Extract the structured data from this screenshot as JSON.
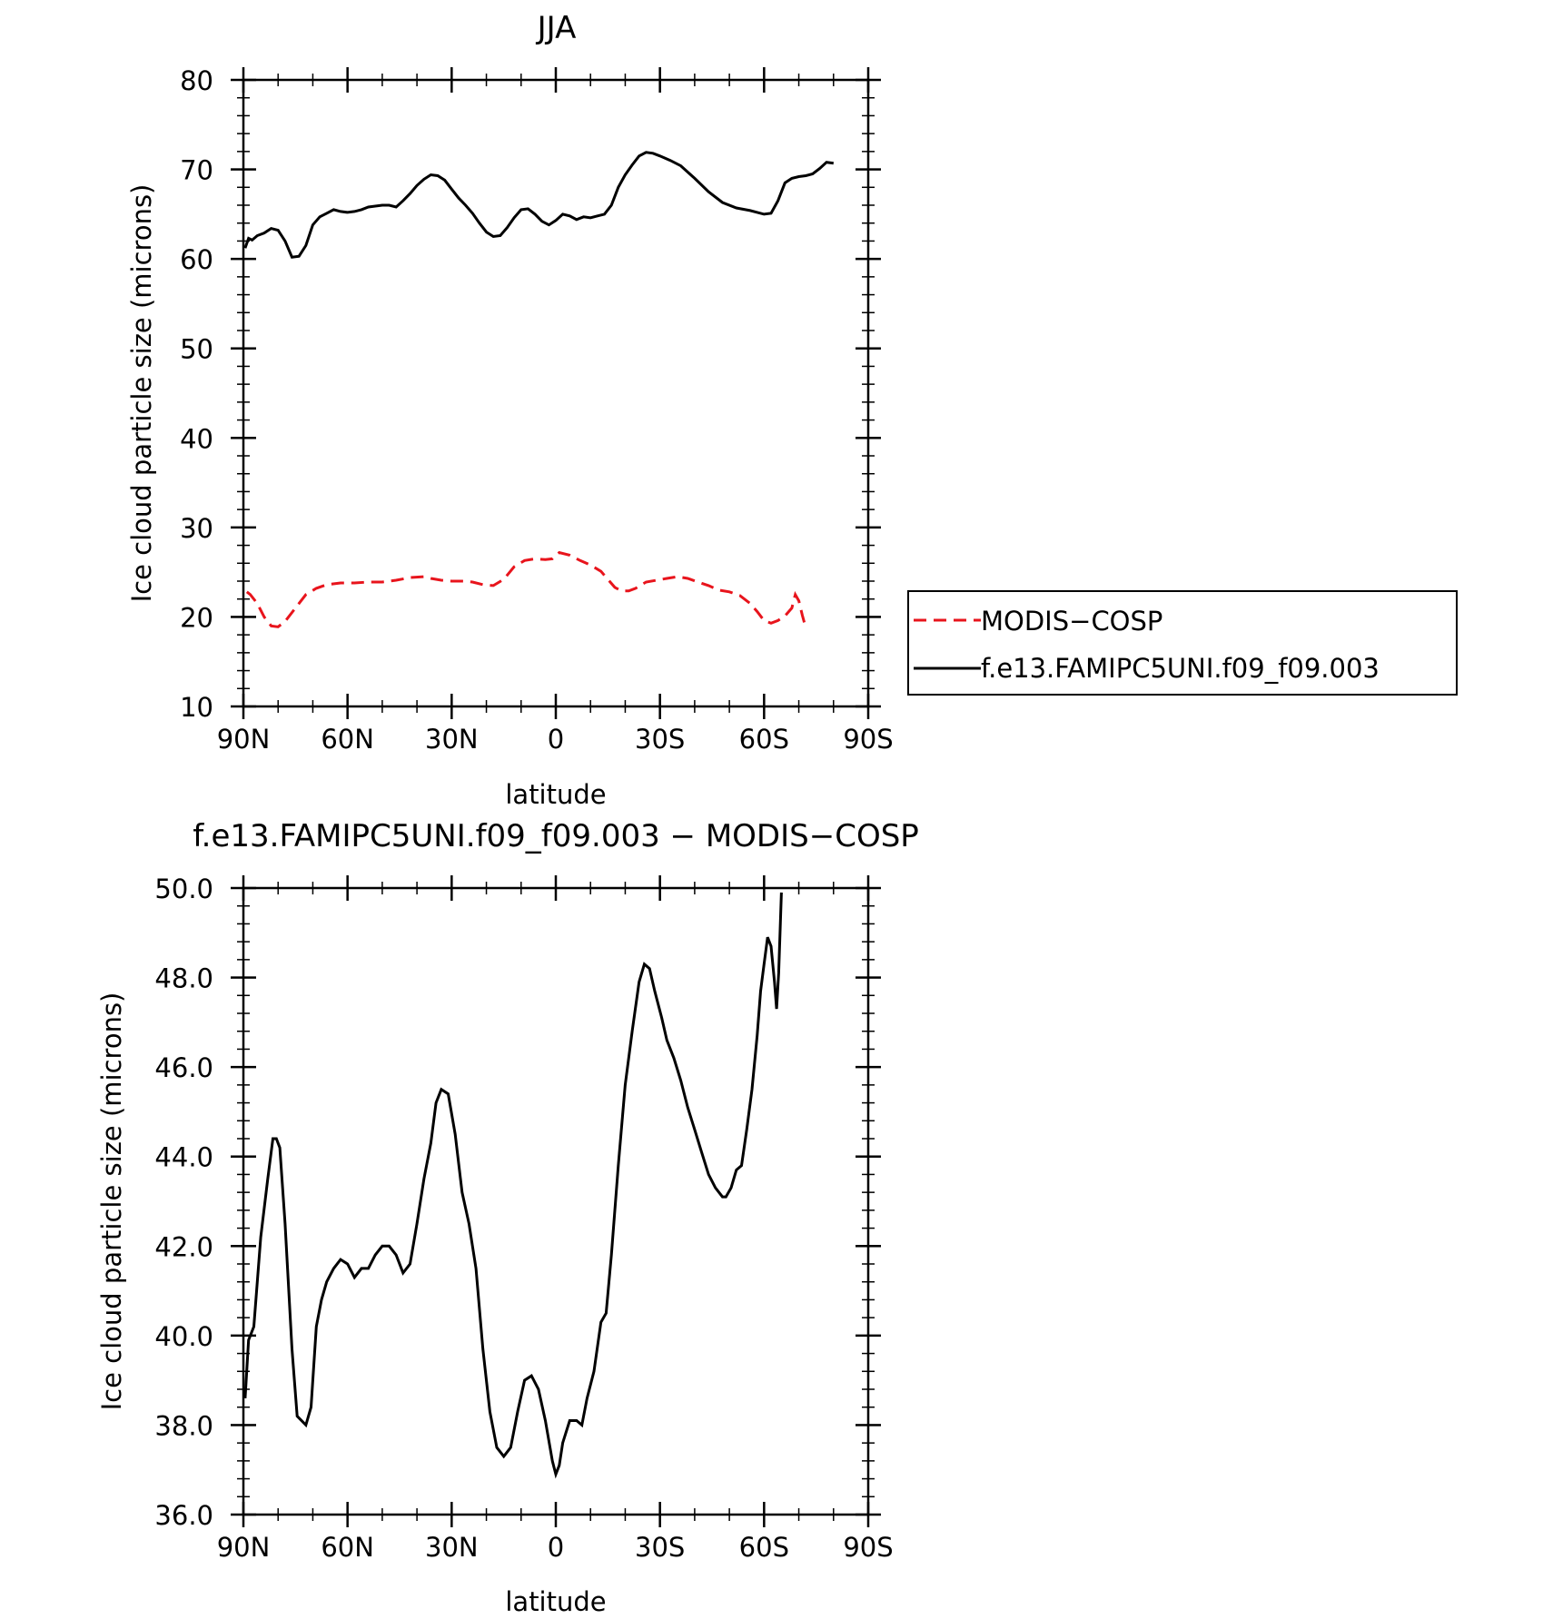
{
  "chart_data": [
    {
      "type": "line",
      "title": "JJA",
      "xlabel": "latitude",
      "ylabel": "Ice cloud particle size (microns)",
      "xlim": [
        -90,
        90
      ],
      "ylim": [
        10,
        80
      ],
      "x_ticks": [
        -90,
        -60,
        -30,
        0,
        30,
        60,
        90
      ],
      "x_tick_labels": [
        "90N",
        "60N",
        "30N",
        "0",
        "30S",
        "60S",
        "90S"
      ],
      "y_ticks": [
        10,
        20,
        30,
        40,
        50,
        60,
        70,
        80
      ],
      "y_tick_labels": [
        "10",
        "20",
        "30",
        "40",
        "50",
        "60",
        "70",
        "80"
      ],
      "grid": false,
      "legend": {
        "placement": "outside-right",
        "entries": [
          "MODIS−COSP",
          "f.e13.FAMIPC5UNI.f09_f09.003"
        ]
      },
      "series": [
        {
          "name": "MODIS−COSP",
          "color": "#e8141c",
          "style": "dashed",
          "points": [
            [
              -89,
              22.8
            ],
            [
              -88,
              22.5
            ],
            [
              -86,
              21.5
            ],
            [
              -84,
              20
            ],
            [
              -82,
              19
            ],
            [
              -80,
              18.9
            ],
            [
              -78,
              19.5
            ],
            [
              -75,
              21
            ],
            [
              -72,
              22.5
            ],
            [
              -69,
              23.2
            ],
            [
              -66,
              23.6
            ],
            [
              -62,
              23.8
            ],
            [
              -58,
              23.8
            ],
            [
              -54,
              23.9
            ],
            [
              -50,
              23.9
            ],
            [
              -46,
              24.1
            ],
            [
              -42,
              24.4
            ],
            [
              -38,
              24.5
            ],
            [
              -36,
              24.3
            ],
            [
              -33,
              24.1
            ],
            [
              -30,
              24
            ],
            [
              -27,
              24
            ],
            [
              -24,
              23.9
            ],
            [
              -21,
              23.6
            ],
            [
              -18,
              23.5
            ],
            [
              -15,
              24.2
            ],
            [
              -12,
              25.6
            ],
            [
              -9,
              26.3
            ],
            [
              -6,
              26.5
            ],
            [
              -3,
              26.4
            ],
            [
              -1,
              26.5
            ],
            [
              1,
              27.2
            ],
            [
              4,
              26.9
            ],
            [
              7,
              26.3
            ],
            [
              10,
              25.8
            ],
            [
              13,
              25.1
            ],
            [
              15,
              24.2
            ],
            [
              17,
              23.3
            ],
            [
              19,
              22.9
            ],
            [
              21,
              22.9
            ],
            [
              23,
              23.2
            ],
            [
              26,
              23.9
            ],
            [
              29,
              24.1
            ],
            [
              32,
              24.3
            ],
            [
              35,
              24.5
            ],
            [
              38,
              24.3
            ],
            [
              41,
              23.9
            ],
            [
              44,
              23.5
            ],
            [
              47,
              23
            ],
            [
              50,
              22.8
            ],
            [
              53,
              22.4
            ],
            [
              56,
              21.5
            ],
            [
              58,
              20.6
            ],
            [
              60,
              19.6
            ],
            [
              62,
              19.3
            ],
            [
              64,
              19.6
            ],
            [
              66,
              20.1
            ],
            [
              68,
              21
            ],
            [
              69,
              22.5
            ],
            [
              70,
              21.8
            ],
            [
              71,
              20.2
            ],
            [
              72,
              18.8
            ]
          ]
        },
        {
          "name": "f.e13.FAMIPC5UNI.f09_f09.003",
          "color": "#000000",
          "style": "solid",
          "points": [
            [
              -89.5,
              61.2
            ],
            [
              -88.5,
              62.3
            ],
            [
              -87.5,
              62.1
            ],
            [
              -86,
              62.6
            ],
            [
              -84,
              62.9
            ],
            [
              -82,
              63.4
            ],
            [
              -80,
              63.2
            ],
            [
              -78,
              62
            ],
            [
              -76,
              60.2
            ],
            [
              -74,
              60.3
            ],
            [
              -72,
              61.5
            ],
            [
              -70,
              63.8
            ],
            [
              -68,
              64.7
            ],
            [
              -66,
              65.1
            ],
            [
              -64,
              65.5
            ],
            [
              -62,
              65.3
            ],
            [
              -60,
              65.2
            ],
            [
              -58,
              65.3
            ],
            [
              -56,
              65.5
            ],
            [
              -54,
              65.8
            ],
            [
              -52,
              65.9
            ],
            [
              -50,
              66
            ],
            [
              -48,
              66
            ],
            [
              -46,
              65.8
            ],
            [
              -44,
              66.5
            ],
            [
              -42,
              67.3
            ],
            [
              -40,
              68.2
            ],
            [
              -38,
              68.9
            ],
            [
              -36,
              69.4
            ],
            [
              -34,
              69.3
            ],
            [
              -32,
              68.8
            ],
            [
              -30,
              67.8
            ],
            [
              -28,
              66.8
            ],
            [
              -26,
              66
            ],
            [
              -24,
              65.1
            ],
            [
              -22,
              64
            ],
            [
              -20,
              63
            ],
            [
              -18,
              62.5
            ],
            [
              -16,
              62.6
            ],
            [
              -14,
              63.5
            ],
            [
              -12,
              64.6
            ],
            [
              -10,
              65.5
            ],
            [
              -8,
              65.6
            ],
            [
              -6,
              65
            ],
            [
              -4,
              64.2
            ],
            [
              -2,
              63.8
            ],
            [
              0,
              64.3
            ],
            [
              2,
              65
            ],
            [
              4,
              64.8
            ],
            [
              6,
              64.4
            ],
            [
              8,
              64.7
            ],
            [
              10,
              64.6
            ],
            [
              12,
              64.8
            ],
            [
              14,
              65
            ],
            [
              16,
              66
            ],
            [
              18,
              68
            ],
            [
              20,
              69.4
            ],
            [
              22,
              70.5
            ],
            [
              24,
              71.5
            ],
            [
              26,
              71.9
            ],
            [
              28,
              71.8
            ],
            [
              30,
              71.5
            ],
            [
              33,
              71
            ],
            [
              36,
              70.4
            ],
            [
              40,
              69
            ],
            [
              44,
              67.5
            ],
            [
              48,
              66.3
            ],
            [
              52,
              65.7
            ],
            [
              56,
              65.4
            ],
            [
              60,
              65
            ],
            [
              62,
              65.1
            ],
            [
              64,
              66.5
            ],
            [
              66,
              68.5
            ],
            [
              68,
              69
            ],
            [
              70,
              69.2
            ],
            [
              72,
              69.3
            ],
            [
              74,
              69.5
            ],
            [
              76,
              70.1
            ],
            [
              78,
              70.8
            ],
            [
              80,
              70.7
            ]
          ]
        }
      ]
    },
    {
      "type": "line",
      "title": "f.e13.FAMIPC5UNI.f09_f09.003 − MODIS−COSP",
      "xlabel": "latitude",
      "ylabel": "Ice cloud particle size (microns)",
      "xlim": [
        -90,
        90
      ],
      "ylim": [
        36,
        50
      ],
      "x_ticks": [
        -90,
        -60,
        -30,
        0,
        30,
        60,
        90
      ],
      "x_tick_labels": [
        "90N",
        "60N",
        "30N",
        "0",
        "30S",
        "60S",
        "90S"
      ],
      "y_ticks": [
        36,
        38,
        40,
        42,
        44,
        46,
        48,
        50
      ],
      "y_tick_labels": [
        "36.0",
        "38.0",
        "40.0",
        "42.0",
        "44.0",
        "46.0",
        "48.0",
        "50.0"
      ],
      "grid": false,
      "series": [
        {
          "color": "#000000",
          "style": "solid",
          "points": [
            [
              -89.5,
              38.6
            ],
            [
              -88.5,
              39.9
            ],
            [
              -87,
              40.2
            ],
            [
              -85,
              42.2
            ],
            [
              -83,
              43.5
            ],
            [
              -81.5,
              44.4
            ],
            [
              -80.5,
              44.4
            ],
            [
              -79.5,
              44.2
            ],
            [
              -78,
              42.5
            ],
            [
              -76,
              39.7
            ],
            [
              -74.5,
              38.2
            ],
            [
              -72,
              38
            ],
            [
              -70.5,
              38.4
            ],
            [
              -69,
              40.2
            ],
            [
              -67.5,
              40.8
            ],
            [
              -66,
              41.2
            ],
            [
              -64,
              41.5
            ],
            [
              -62,
              41.7
            ],
            [
              -60,
              41.6
            ],
            [
              -58,
              41.3
            ],
            [
              -56,
              41.5
            ],
            [
              -54,
              41.5
            ],
            [
              -52,
              41.8
            ],
            [
              -50,
              42
            ],
            [
              -48,
              42
            ],
            [
              -46,
              41.8
            ],
            [
              -44,
              41.4
            ],
            [
              -42,
              41.6
            ],
            [
              -40,
              42.5
            ],
            [
              -38,
              43.5
            ],
            [
              -36,
              44.3
            ],
            [
              -34.5,
              45.2
            ],
            [
              -33,
              45.5
            ],
            [
              -31,
              45.4
            ],
            [
              -29,
              44.5
            ],
            [
              -27,
              43.2
            ],
            [
              -25,
              42.5
            ],
            [
              -23,
              41.5
            ],
            [
              -21,
              39.7
            ],
            [
              -19,
              38.3
            ],
            [
              -17,
              37.5
            ],
            [
              -15,
              37.3
            ],
            [
              -13,
              37.5
            ],
            [
              -11,
              38.3
            ],
            [
              -9,
              39
            ],
            [
              -7,
              39.1
            ],
            [
              -5,
              38.8
            ],
            [
              -3,
              38.1
            ],
            [
              -1,
              37.2
            ],
            [
              0,
              36.9
            ],
            [
              1,
              37.1
            ],
            [
              2,
              37.6
            ],
            [
              4,
              38.1
            ],
            [
              6,
              38.1
            ],
            [
              7.5,
              38
            ],
            [
              9,
              38.6
            ],
            [
              11,
              39.2
            ],
            [
              13,
              40.3
            ],
            [
              14.5,
              40.5
            ],
            [
              16,
              41.8
            ],
            [
              18,
              43.8
            ],
            [
              20,
              45.6
            ],
            [
              22,
              46.8
            ],
            [
              24,
              47.9
            ],
            [
              25.5,
              48.3
            ],
            [
              27,
              48.2
            ],
            [
              28.5,
              47.7
            ],
            [
              30.5,
              47.1
            ],
            [
              32,
              46.6
            ],
            [
              34,
              46.2
            ],
            [
              36,
              45.7
            ],
            [
              38,
              45.1
            ],
            [
              40,
              44.6
            ],
            [
              42,
              44.1
            ],
            [
              44,
              43.6
            ],
            [
              46,
              43.3
            ],
            [
              48,
              43.1
            ],
            [
              49,
              43.1
            ],
            [
              50.5,
              43.3
            ],
            [
              52,
              43.7
            ],
            [
              53.5,
              43.8
            ],
            [
              55,
              44.6
            ],
            [
              56.5,
              45.5
            ],
            [
              58,
              46.7
            ],
            [
              59,
              47.7
            ],
            [
              60,
              48.3
            ],
            [
              61,
              48.9
            ],
            [
              62,
              48.7
            ],
            [
              63,
              47.9
            ],
            [
              63.6,
              47.3
            ],
            [
              64.2,
              48.1
            ],
            [
              65,
              49.9
            ]
          ]
        }
      ]
    }
  ]
}
